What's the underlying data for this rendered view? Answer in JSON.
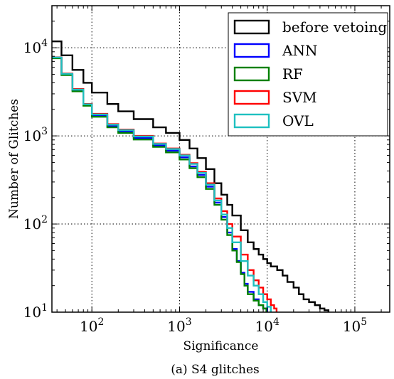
{
  "chart_data": {
    "type": "line",
    "step": true,
    "xscale": "log",
    "yscale": "log",
    "xlim": [
      35,
      250000
    ],
    "ylim": [
      10,
      30000
    ],
    "xlabel": "Significance",
    "ylabel": "Number of Glitches",
    "caption": "(a) S4 glitches",
    "grid": true,
    "legend_position": "top-right",
    "x_ticks": [
      {
        "value": 100,
        "base": "10",
        "exp": "2"
      },
      {
        "value": 1000,
        "base": "10",
        "exp": "3"
      },
      {
        "value": 10000,
        "base": "10",
        "exp": "4"
      },
      {
        "value": 100000,
        "base": "10",
        "exp": "5"
      }
    ],
    "y_ticks": [
      {
        "value": 10,
        "base": "10",
        "exp": "1"
      },
      {
        "value": 100,
        "base": "10",
        "exp": "2"
      },
      {
        "value": 1000,
        "base": "10",
        "exp": "3"
      },
      {
        "value": 10000,
        "base": "10",
        "exp": "4"
      }
    ],
    "series": [
      {
        "name": "before vetoing",
        "color": "#000000",
        "points": [
          [
            35,
            11800
          ],
          [
            45,
            8200
          ],
          [
            60,
            5600
          ],
          [
            80,
            4000
          ],
          [
            100,
            3100
          ],
          [
            150,
            2300
          ],
          [
            200,
            1900
          ],
          [
            300,
            1550
          ],
          [
            500,
            1250
          ],
          [
            700,
            1080
          ],
          [
            1000,
            900
          ],
          [
            1300,
            720
          ],
          [
            1600,
            560
          ],
          [
            2000,
            420
          ],
          [
            2500,
            290
          ],
          [
            3000,
            215
          ],
          [
            3500,
            165
          ],
          [
            4000,
            125
          ],
          [
            5000,
            85
          ],
          [
            6000,
            62
          ],
          [
            7000,
            52
          ],
          [
            8000,
            45
          ],
          [
            9000,
            40
          ],
          [
            10000,
            36
          ],
          [
            11000,
            33
          ],
          [
            13000,
            30
          ],
          [
            15000,
            26
          ],
          [
            17000,
            22
          ],
          [
            20000,
            19
          ],
          [
            23000,
            16
          ],
          [
            26000,
            14
          ],
          [
            30000,
            13
          ],
          [
            35000,
            12
          ],
          [
            40000,
            11
          ],
          [
            45000,
            10.5
          ],
          [
            50000,
            10
          ]
        ]
      },
      {
        "name": "ANN",
        "color": "#0000ff",
        "points": [
          [
            35,
            7700
          ],
          [
            45,
            5000
          ],
          [
            60,
            3300
          ],
          [
            80,
            2250
          ],
          [
            100,
            1720
          ],
          [
            150,
            1300
          ],
          [
            200,
            1120
          ],
          [
            300,
            950
          ],
          [
            500,
            780
          ],
          [
            700,
            680
          ],
          [
            1000,
            570
          ],
          [
            1300,
            450
          ],
          [
            1600,
            360
          ],
          [
            2000,
            265
          ],
          [
            2500,
            175
          ],
          [
            3000,
            120
          ],
          [
            3500,
            80
          ],
          [
            4000,
            52
          ],
          [
            4500,
            38
          ],
          [
            5000,
            28
          ],
          [
            5500,
            21
          ],
          [
            6000,
            17
          ],
          [
            7000,
            14
          ],
          [
            8000,
            12
          ],
          [
            9000,
            11
          ],
          [
            10000,
            10
          ]
        ]
      },
      {
        "name": "RF",
        "color": "#008000",
        "points": [
          [
            35,
            7600
          ],
          [
            45,
            4900
          ],
          [
            60,
            3200
          ],
          [
            80,
            2200
          ],
          [
            100,
            1650
          ],
          [
            150,
            1250
          ],
          [
            200,
            1080
          ],
          [
            300,
            910
          ],
          [
            500,
            750
          ],
          [
            700,
            650
          ],
          [
            1000,
            540
          ],
          [
            1300,
            430
          ],
          [
            1600,
            340
          ],
          [
            2000,
            250
          ],
          [
            2500,
            165
          ],
          [
            3000,
            112
          ],
          [
            3500,
            75
          ],
          [
            4000,
            50
          ],
          [
            4500,
            37
          ],
          [
            5000,
            27
          ],
          [
            5500,
            20
          ],
          [
            6000,
            16
          ],
          [
            7000,
            13.5
          ],
          [
            8000,
            12
          ],
          [
            9000,
            11
          ],
          [
            9800,
            10
          ]
        ]
      },
      {
        "name": "SVM",
        "color": "#ff0000",
        "points": [
          [
            35,
            7800
          ],
          [
            45,
            5100
          ],
          [
            60,
            3400
          ],
          [
            80,
            2300
          ],
          [
            100,
            1780
          ],
          [
            150,
            1360
          ],
          [
            200,
            1180
          ],
          [
            300,
            1000
          ],
          [
            500,
            820
          ],
          [
            700,
            720
          ],
          [
            1000,
            610
          ],
          [
            1300,
            490
          ],
          [
            1600,
            390
          ],
          [
            2000,
            290
          ],
          [
            2500,
            195
          ],
          [
            3000,
            140
          ],
          [
            3500,
            100
          ],
          [
            4000,
            72
          ],
          [
            5000,
            45
          ],
          [
            6000,
            30
          ],
          [
            7000,
            23
          ],
          [
            8000,
            19
          ],
          [
            9000,
            16
          ],
          [
            10000,
            14
          ],
          [
            11000,
            12
          ],
          [
            12000,
            11
          ],
          [
            12800,
            10
          ]
        ]
      },
      {
        "name": "OVL",
        "color": "#1ec0c0",
        "points": [
          [
            35,
            7750
          ],
          [
            45,
            5050
          ],
          [
            60,
            3350
          ],
          [
            80,
            2280
          ],
          [
            100,
            1750
          ],
          [
            150,
            1340
          ],
          [
            200,
            1160
          ],
          [
            300,
            985
          ],
          [
            500,
            810
          ],
          [
            700,
            710
          ],
          [
            1000,
            600
          ],
          [
            1300,
            480
          ],
          [
            1600,
            380
          ],
          [
            2000,
            280
          ],
          [
            2500,
            185
          ],
          [
            3000,
            128
          ],
          [
            3500,
            90
          ],
          [
            4000,
            62
          ],
          [
            5000,
            38
          ],
          [
            6000,
            26
          ],
          [
            7000,
            20
          ],
          [
            8000,
            16
          ],
          [
            9000,
            13
          ],
          [
            10000,
            11.5
          ],
          [
            11000,
            10
          ]
        ]
      }
    ]
  }
}
